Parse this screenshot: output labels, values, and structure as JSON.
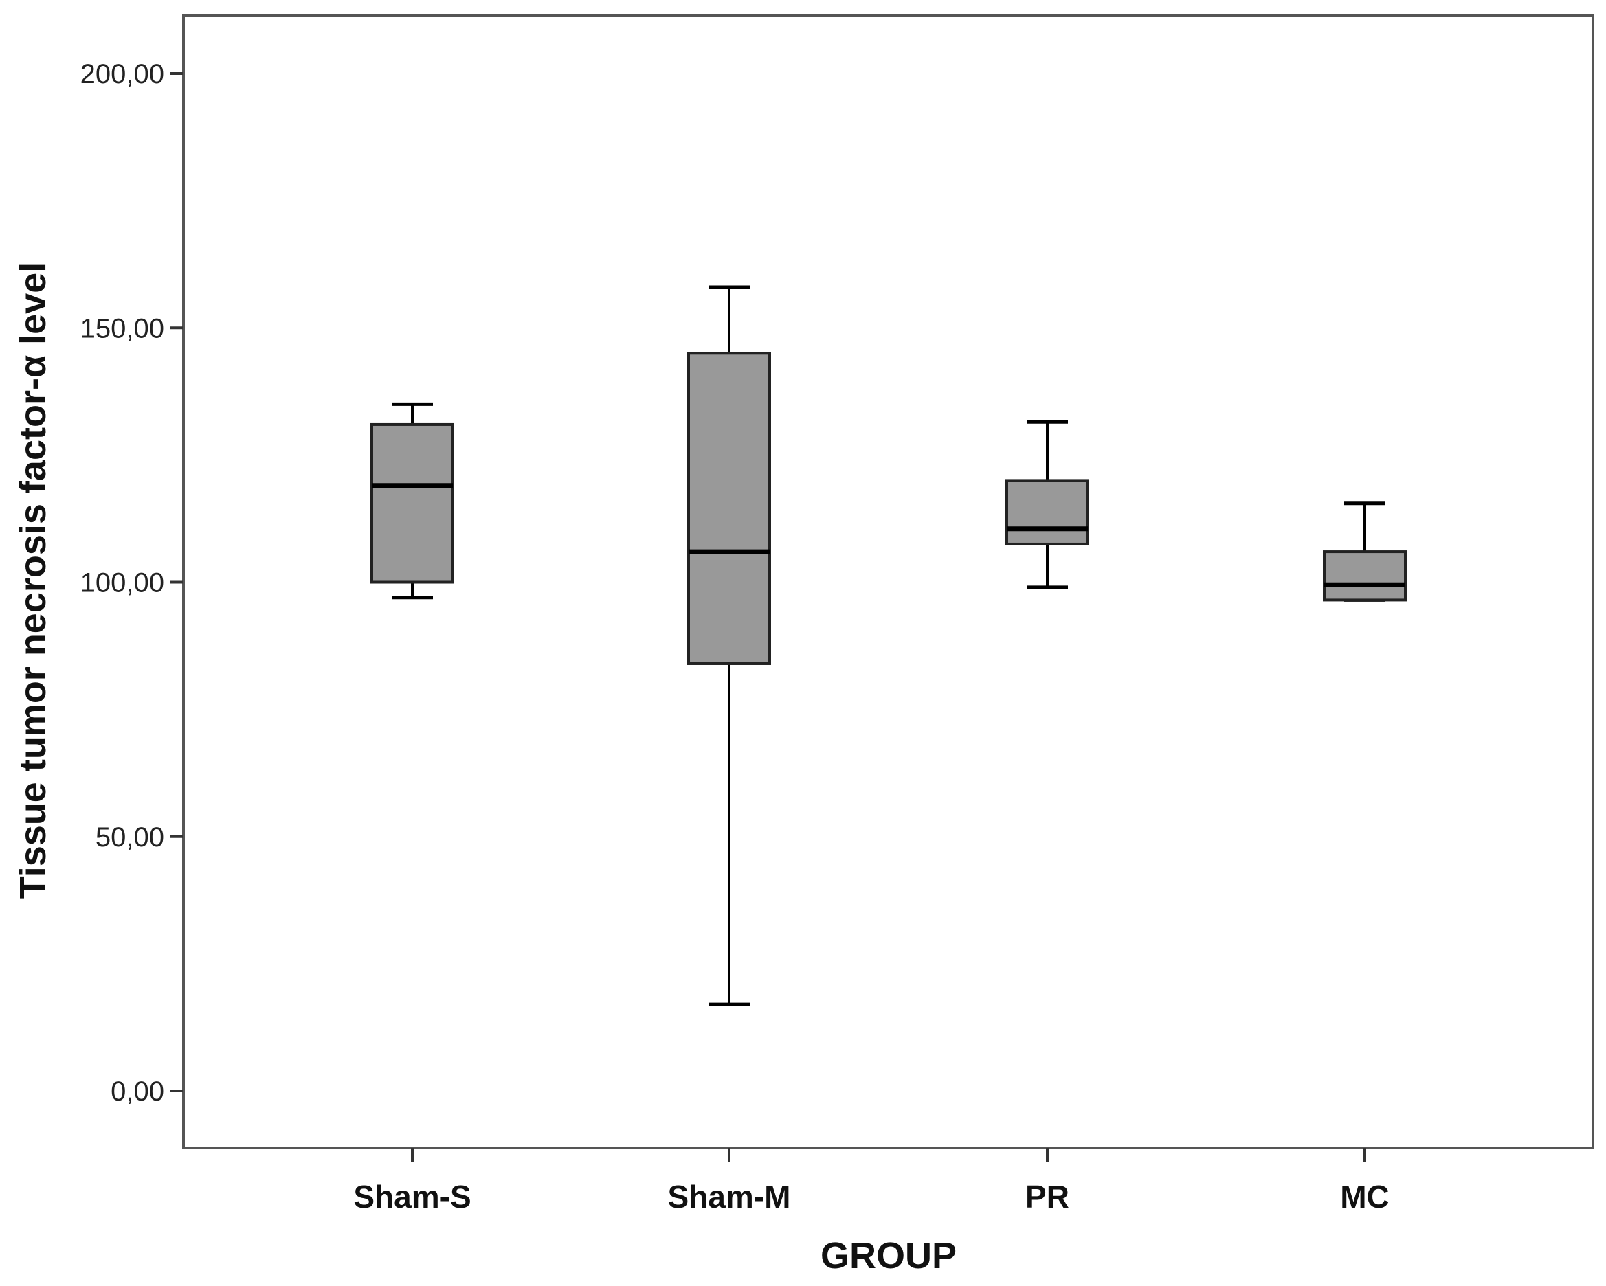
{
  "chart_data": {
    "type": "boxplot",
    "title": "",
    "xlabel": "GROUP",
    "ylabel": "Tissue tumor necrosis factor-α level",
    "ylim": [
      -11,
      211
    ],
    "y_ticks": [
      0,
      50,
      100,
      150,
      200
    ],
    "y_tick_labels": [
      "0,00",
      "50,00",
      "100,00",
      "150,00",
      "200,00"
    ],
    "categories": [
      "Sham-S",
      "Sham-M",
      "PR",
      "MC"
    ],
    "boxes": [
      {
        "name": "Sham-S",
        "min": 97,
        "q1": 100,
        "median": 119,
        "q3": 131,
        "max": 135
      },
      {
        "name": "Sham-M",
        "min": 17,
        "q1": 84,
        "median": 106,
        "q3": 145,
        "max": 158
      },
      {
        "name": "PR",
        "min": 99,
        "q1": 107.5,
        "median": 110.5,
        "q3": 120,
        "max": 131.5
      },
      {
        "name": "MC",
        "min": 96.5,
        "q1": 96.5,
        "median": 99.5,
        "q3": 106,
        "max": 115.5
      }
    ],
    "box_fill": "#999999",
    "line_color": "#000000",
    "grid": false
  }
}
